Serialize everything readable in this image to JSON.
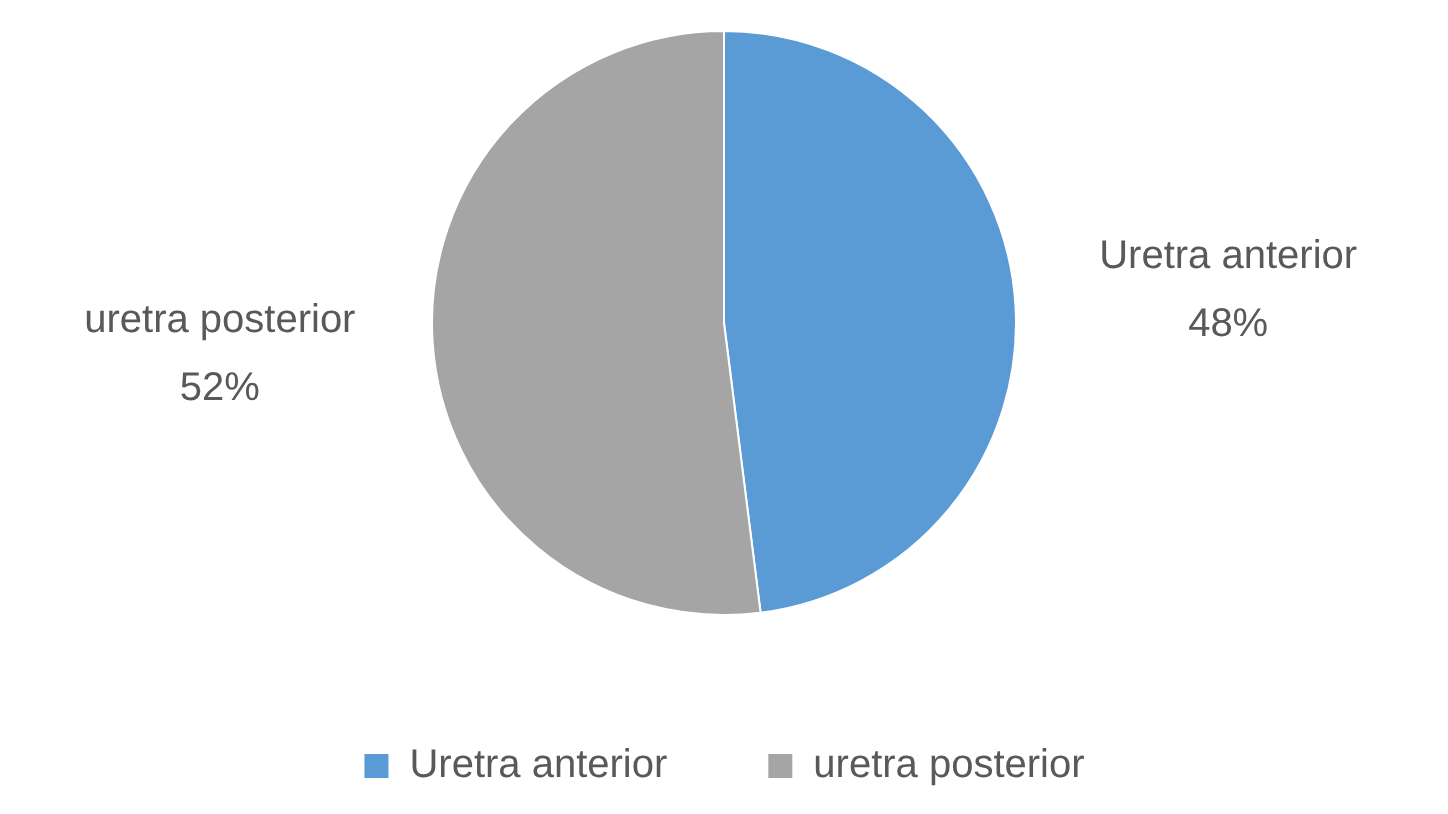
{
  "chart_data": {
    "type": "pie",
    "categories": [
      "Uretra anterior",
      "uretra posterior"
    ],
    "values": [
      48,
      52
    ],
    "colors": [
      "#5b9bd5",
      "#a5a5a5"
    ],
    "value_labels": [
      "48%",
      "52%"
    ],
    "legend": "bottom"
  }
}
